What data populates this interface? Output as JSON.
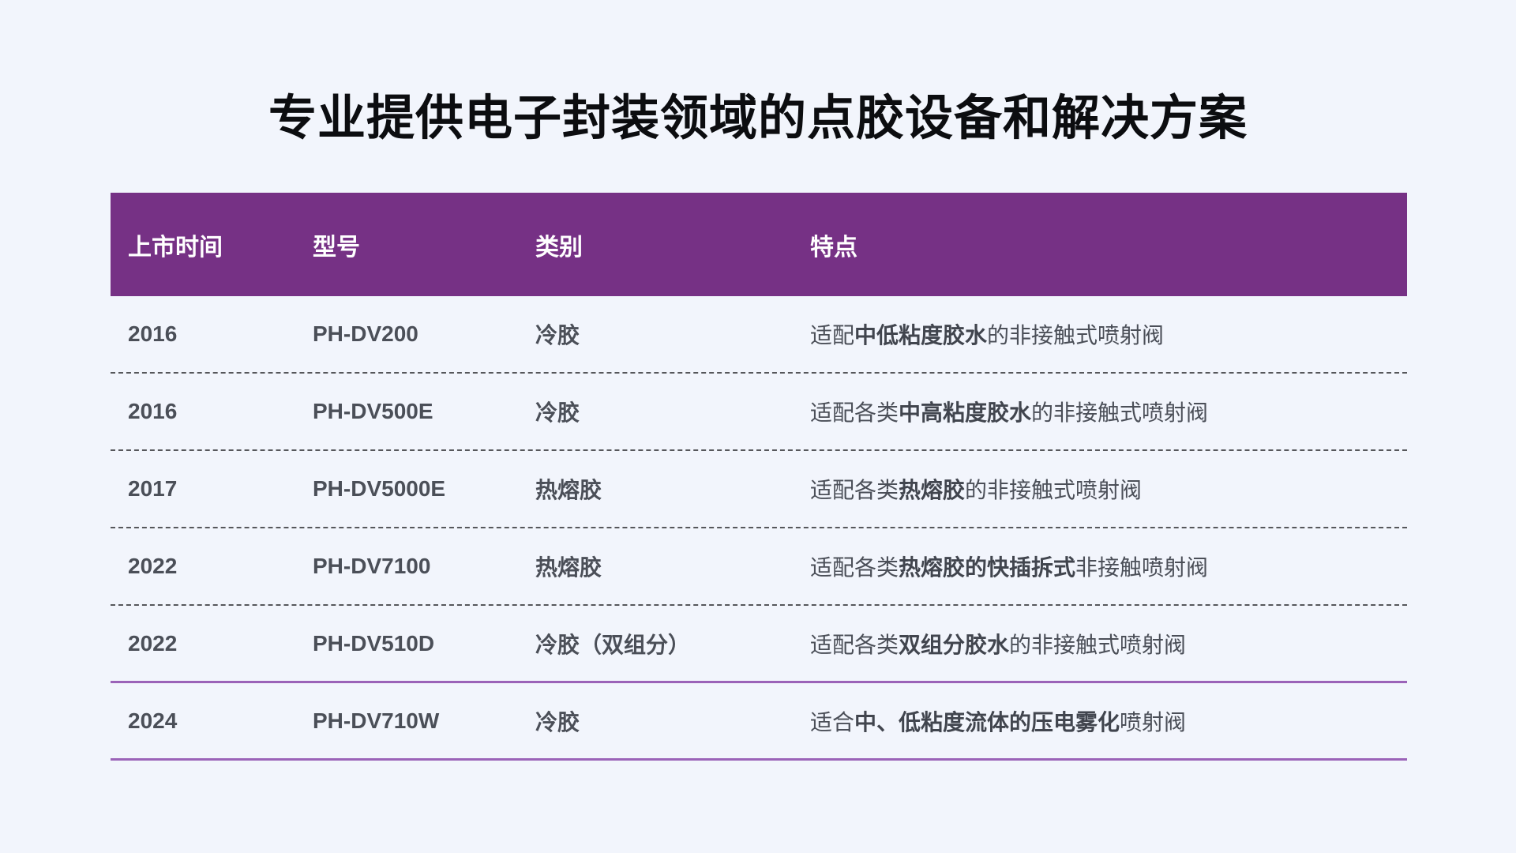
{
  "page": {
    "title": "专业提供电子封装领域的点胶设备和解决方案",
    "background": "#f2f5fc"
  },
  "colors": {
    "header_bg": "#763185",
    "header_text": "#ffffff",
    "accent_line": "#9b63b8",
    "dashed_line": "#56575b",
    "body_text": "#4b4f58",
    "title_text": "#0c0d10"
  },
  "table": {
    "columns": [
      {
        "key": "year",
        "label": "上市时间"
      },
      {
        "key": "model",
        "label": "型号"
      },
      {
        "key": "category",
        "label": "类别"
      },
      {
        "key": "feature",
        "label": "特点"
      }
    ],
    "rows": [
      {
        "year": "2016",
        "model": "PH-DV200",
        "category": "冷胶",
        "feature_pre": "适配",
        "feature_bold": "中低粘度胶水",
        "feature_post": "的非接触式喷射阀"
      },
      {
        "year": "2016",
        "model": "PH-DV500E",
        "category": "冷胶",
        "feature_pre": "适配各类",
        "feature_bold": "中高粘度胶水",
        "feature_post": "的非接触式喷射阀"
      },
      {
        "year": "2017",
        "model": "PH-DV5000E",
        "category": "热熔胶",
        "feature_pre": "适配各类",
        "feature_bold": "热熔胶",
        "feature_post": "的非接触式喷射阀"
      },
      {
        "year": "2022",
        "model": "PH-DV7100",
        "category": "热熔胶",
        "feature_pre": "适配各类",
        "feature_bold": "热熔胶的快插拆式",
        "feature_post": "非接触喷射阀"
      },
      {
        "year": "2022",
        "model": "PH-DV510D",
        "category": "冷胶（双组分）",
        "feature_pre": "适配各类",
        "feature_bold": "双组分胶水",
        "feature_post": "的非接触式喷射阀"
      },
      {
        "year": "2024",
        "model": "PH-DV710W",
        "category": "冷胶",
        "feature_pre": "适合",
        "feature_bold": "中、低粘度流体的压电雾化",
        "feature_post": "喷射阀"
      }
    ]
  }
}
